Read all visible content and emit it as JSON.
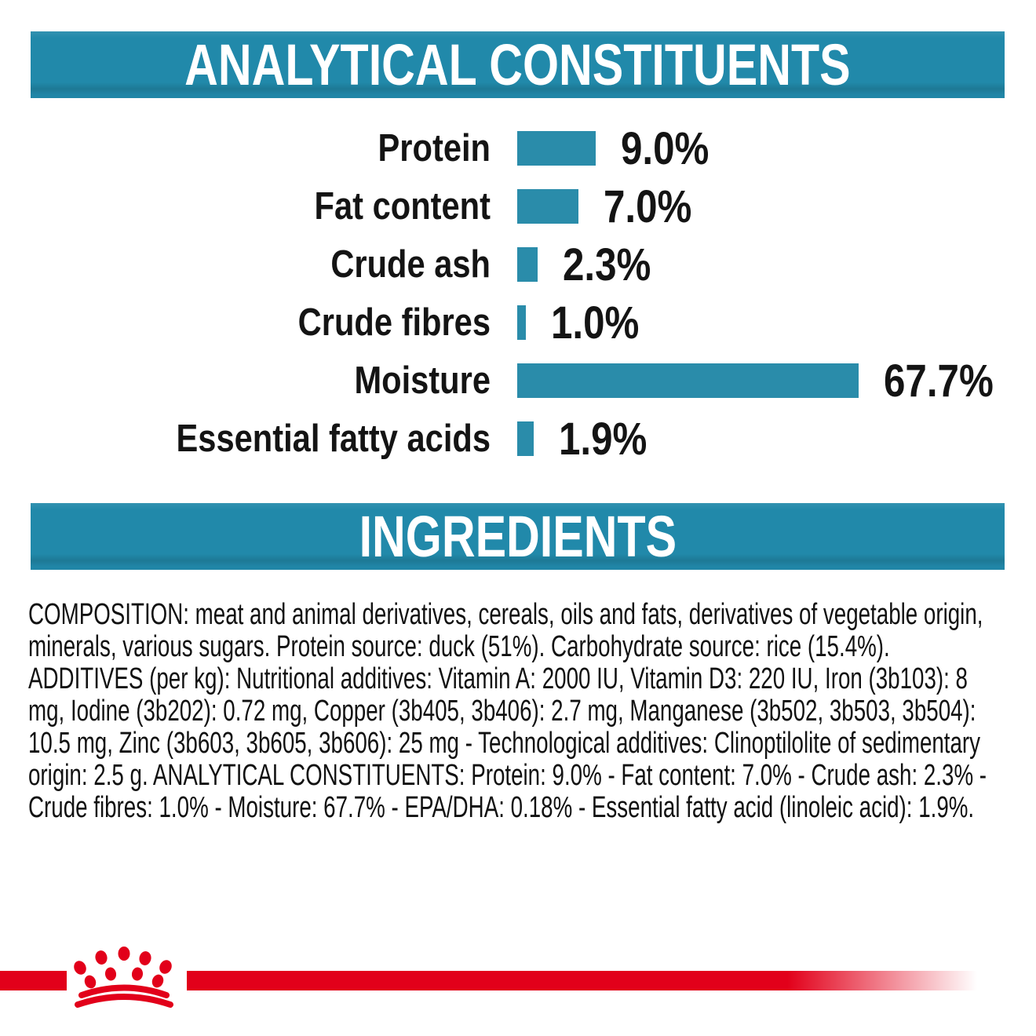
{
  "title_banner": {
    "label": "ANALYTICAL CONSTITUENTS"
  },
  "ingredients_banner": {
    "label": "INGREDIENTS"
  },
  "chart_data": {
    "type": "bar",
    "orientation": "horizontal",
    "title": "ANALYTICAL CONSTITUENTS",
    "categories": [
      "Protein",
      "Fat content",
      "Crude ash",
      "Crude fibres",
      "Moisture",
      "Essential fatty acids"
    ],
    "values": [
      9.0,
      7.0,
      2.3,
      1.0,
      67.7,
      1.9
    ],
    "value_labels": [
      "9.0%",
      "7.0%",
      "2.3%",
      "1.0%",
      "67.7%",
      "1.9%"
    ],
    "unit": "%",
    "xlim": [
      0,
      70
    ],
    "grid": false,
    "legend": "none",
    "bar_color": "#2a8caa"
  },
  "composition": {
    "text": "COMPOSITION: meat and animal derivatives, cereals, oils and fats, derivatives of vegetable origin, minerals, various sugars. Protein source: duck (51%). Carbohydrate source: rice (15.4%). ADDITIVES (per kg): Nutritional additives: Vitamin A: 2000 IU, Vitamin D3: 220 IU, Iron (3b103): 8 mg, Iodine (3b202): 0.72 mg, Copper (3b405, 3b406): 2.7 mg, Manganese (3b502, 3b503, 3b504): 10.5 mg, Zinc (3b603, 3b605, 3b606): 25 mg - Technological additives: Clinoptilolite of sedimentary origin: 2.5 g. ANALYTICAL CONSTITUENTS: Protein: 9.0% - Fat content: 7.0% - Crude ash: 2.3% - Crude fibres: 1.0% - Moisture: 67.7% - EPA/DHA: 0.18% - Essential fatty acid (linoleic acid): 1.9%."
  },
  "brand": {
    "logo": "royal-canin-crown"
  },
  "colors": {
    "banner_teal": "#2189aa",
    "bar_teal": "#2a8caa",
    "brand_red": "#e2001a",
    "banner_text": "#ffffff",
    "body_text": "#111111"
  }
}
